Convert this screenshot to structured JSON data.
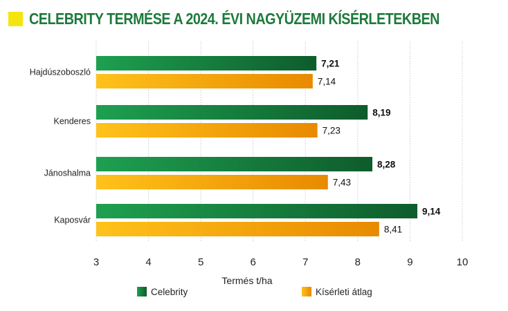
{
  "header": {
    "title": "CELEBRITY TERMÉSE A 2024. ÉVI NAGYÜZEMI KÍSÉRLETEKBEN"
  },
  "colors": {
    "title": "#1e7a3c",
    "title_square": "#f5e50f",
    "celebrity_dark": "#0e5c2c",
    "celebrity_light": "#1ea050",
    "average_dark": "#e88a00",
    "average_light": "#ffc21a",
    "grid": "#c8c8c8"
  },
  "chart_data": {
    "type": "bar",
    "orientation": "horizontal",
    "categories": [
      "Hajdúszoboszló",
      "Kenderes",
      "Jánoshalma",
      "Kaposvár"
    ],
    "series": [
      {
        "name": "Celebrity",
        "values": [
          7.21,
          8.19,
          8.28,
          9.14
        ],
        "value_labels": [
          "7,21",
          "8,19",
          "8,28",
          "9,14"
        ]
      },
      {
        "name": "Kísérleti átlag",
        "values": [
          7.14,
          7.23,
          7.43,
          8.41
        ],
        "value_labels": [
          "7,14",
          "7,23",
          "7,43",
          "8,41"
        ]
      }
    ],
    "xlim": [
      3,
      10
    ],
    "xticks": [
      "3",
      "4",
      "5",
      "6",
      "7",
      "8",
      "9",
      "10"
    ],
    "xlabel": "Termés t/ha",
    "grid": "vertical dashed",
    "legend": "bottom"
  }
}
